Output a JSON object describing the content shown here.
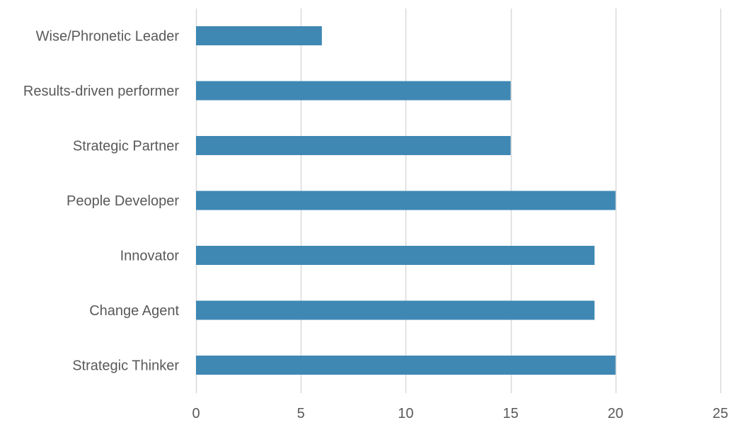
{
  "chart_data": {
    "type": "bar",
    "orientation": "horizontal",
    "categories": [
      "Wise/Phronetic Leader",
      "Results-driven performer",
      "Strategic Partner",
      "People Developer",
      "Innovator",
      "Change Agent",
      "Strategic Thinker"
    ],
    "values": [
      6,
      15,
      15,
      20,
      19,
      19,
      20
    ],
    "xlim": [
      0,
      25
    ],
    "xticks": [
      "0",
      "5",
      "10",
      "15",
      "20",
      "25"
    ],
    "grid": "vertical",
    "legend": "none",
    "bar_color": "#3f88b4",
    "grid_color": "#d9d9d9",
    "text_color": "#595959"
  }
}
